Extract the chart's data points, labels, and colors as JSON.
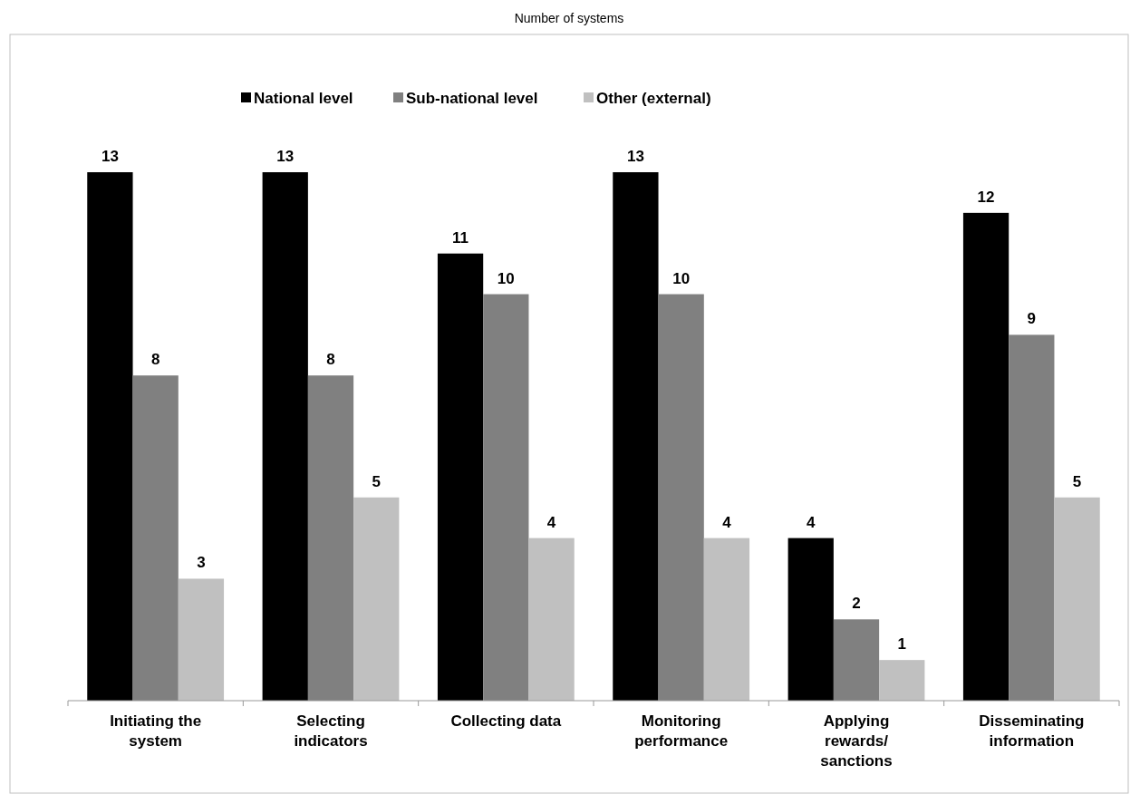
{
  "chart_data": {
    "type": "bar",
    "title": "Number of systems",
    "categories": [
      "Initiating the system",
      "Selecting indicators",
      "Collecting data",
      "Monitoring performance",
      "Applying rewards/ sanctions",
      "Disseminating information"
    ],
    "series": [
      {
        "name": "National level",
        "color": "#000000",
        "values": [
          13,
          13,
          11,
          13,
          4,
          12
        ]
      },
      {
        "name": "Sub-national level",
        "color": "#808080",
        "values": [
          8,
          8,
          10,
          10,
          2,
          9
        ]
      },
      {
        "name": "Other (external)",
        "color": "#c0c0c0",
        "values": [
          3,
          5,
          4,
          4,
          1,
          5
        ]
      }
    ],
    "data_labels": true,
    "legend": "top",
    "grid": false
  }
}
